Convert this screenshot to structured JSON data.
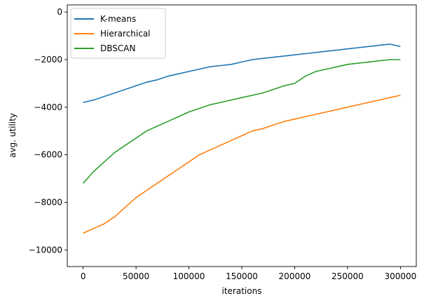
{
  "chart_data": {
    "type": "line",
    "title": "",
    "xlabel": "iterations",
    "ylabel": "avg. utility",
    "xlim": [
      -15000,
      315000
    ],
    "ylim": [
      -10700,
      300
    ],
    "x_ticks": [
      0,
      50000,
      100000,
      150000,
      200000,
      250000,
      300000
    ],
    "x_tick_labels": [
      "0",
      "50000",
      "100000",
      "150000",
      "200000",
      "250000",
      "300000"
    ],
    "y_ticks": [
      -10000,
      -8000,
      -6000,
      -4000,
      -2000,
      0
    ],
    "y_tick_labels": [
      "−10000",
      "−8000",
      "−6000",
      "−4000",
      "−2000",
      "0"
    ],
    "grid": false,
    "legend_position": "top-left",
    "x": [
      0,
      10000,
      20000,
      30000,
      40000,
      50000,
      60000,
      70000,
      80000,
      90000,
      100000,
      110000,
      120000,
      130000,
      140000,
      150000,
      160000,
      170000,
      180000,
      190000,
      200000,
      210000,
      220000,
      230000,
      240000,
      250000,
      260000,
      270000,
      280000,
      290000,
      300000
    ],
    "series": [
      {
        "name": "K-means",
        "color": "#1f77b4",
        "values": [
          -3800,
          -3700,
          -3550,
          -3400,
          -3250,
          -3100,
          -2950,
          -2850,
          -2700,
          -2600,
          -2500,
          -2400,
          -2300,
          -2250,
          -2200,
          -2100,
          -2000,
          -1950,
          -1900,
          -1850,
          -1800,
          -1750,
          -1700,
          -1650,
          -1600,
          -1550,
          -1500,
          -1450,
          -1400,
          -1350,
          -1450
        ]
      },
      {
        "name": "Hierarchical",
        "color": "#ff7f0e",
        "values": [
          -9300,
          -9100,
          -8900,
          -8600,
          -8200,
          -7800,
          -7500,
          -7200,
          -6900,
          -6600,
          -6300,
          -6000,
          -5800,
          -5600,
          -5400,
          -5200,
          -5000,
          -4900,
          -4750,
          -4600,
          -4500,
          -4400,
          -4300,
          -4200,
          -4100,
          -4000,
          -3900,
          -3800,
          -3700,
          -3600,
          -3500
        ]
      },
      {
        "name": "DBSCAN",
        "color": "#2ca02c",
        "values": [
          -7200,
          -6700,
          -6300,
          -5900,
          -5600,
          -5300,
          -5000,
          -4800,
          -4600,
          -4400,
          -4200,
          -4050,
          -3900,
          -3800,
          -3700,
          -3600,
          -3500,
          -3400,
          -3250,
          -3100,
          -3000,
          -2700,
          -2500,
          -2400,
          -2300,
          -2200,
          -2150,
          -2100,
          -2050,
          -2000,
          -2000
        ]
      }
    ]
  }
}
